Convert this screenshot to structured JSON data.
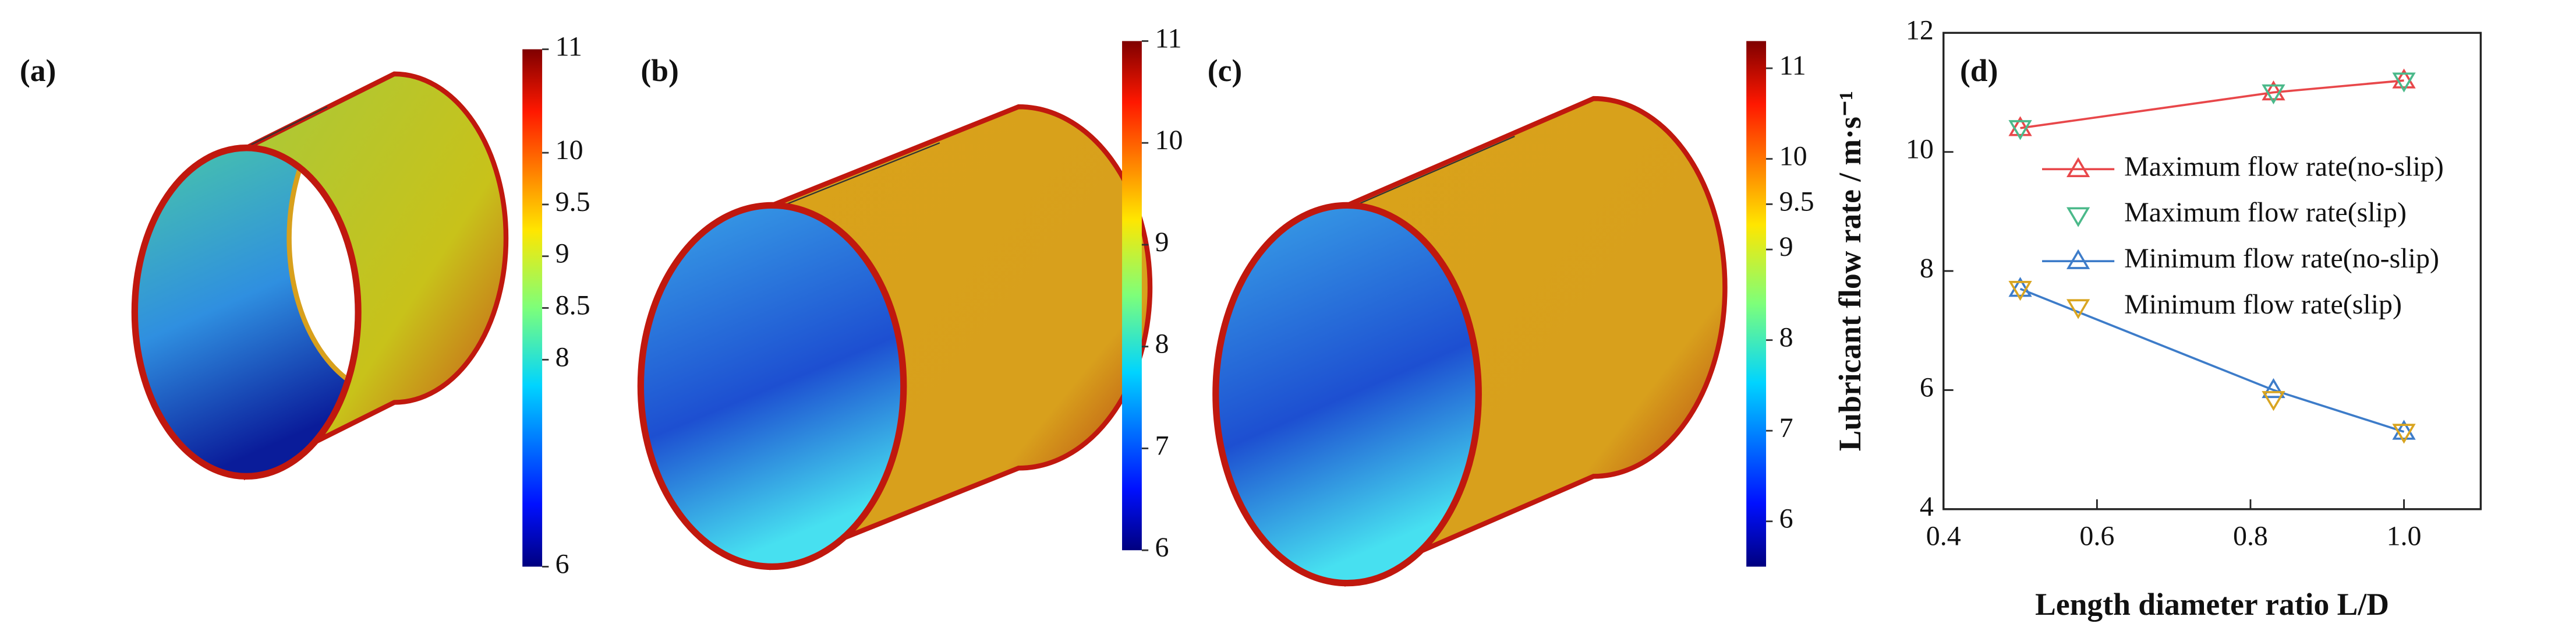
{
  "chart_data": [
    {
      "type": "contour",
      "label": "(a)",
      "clim": [
        6,
        11
      ],
      "cticks": [
        6,
        8,
        8.5,
        9,
        9.5,
        10,
        11
      ]
    },
    {
      "type": "contour",
      "label": "(b)",
      "clim": [
        6,
        11
      ],
      "cticks": [
        6,
        7,
        8,
        9,
        10,
        11
      ]
    },
    {
      "type": "contour",
      "label": "(c)",
      "clim": [
        5.5,
        11.3
      ],
      "cticks": [
        6,
        7,
        8,
        9,
        9.5,
        10,
        11
      ]
    },
    {
      "type": "line",
      "label": "(d)",
      "x_label": "Length diameter ratio L/D",
      "y_label": "Lubricant flow rate / m·s⁻¹",
      "x": [
        0.5,
        0.83,
        1
      ],
      "series": [
        {
          "name": "Maximum flow rate(no-slip)",
          "color": "#e8474a",
          "marker": "up",
          "line": true,
          "values": [
            10.4,
            11.0,
            11.2
          ]
        },
        {
          "name": "Maximum flow rate(slip)",
          "color": "#4bb98a",
          "marker": "down",
          "line": false,
          "values": [
            10.4,
            11.0,
            11.2
          ]
        },
        {
          "name": "Minimum flow rate(no-slip)",
          "color": "#3d7cc9",
          "marker": "up",
          "line": true,
          "values": [
            7.7,
            6.0,
            5.3
          ]
        },
        {
          "name": "Minimum flow rate(slip)",
          "color": "#d9a521",
          "marker": "down",
          "line": false,
          "values": [
            7.7,
            5.85,
            5.3
          ]
        }
      ],
      "xlim": [
        0.4,
        1.1
      ],
      "xticks": [
        0.4,
        0.6,
        0.8,
        {
          "value": 1,
          "label": "1.0"
        }
      ],
      "ylim": [
        4,
        12
      ],
      "yticks": [
        4,
        6,
        8,
        10,
        12
      ],
      "legend": "upper right"
    }
  ]
}
